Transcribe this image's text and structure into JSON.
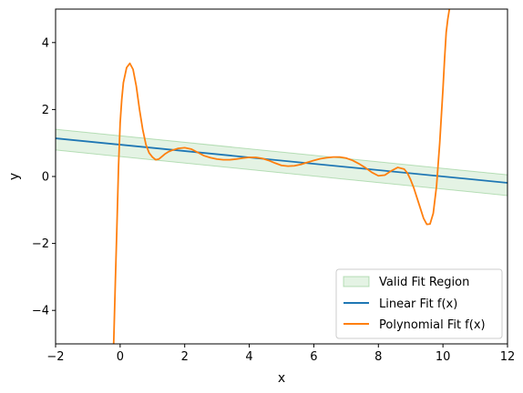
{
  "chart_data": {
    "type": "line",
    "title": "",
    "xlabel": "x",
    "ylabel": "y",
    "xlim": [
      -2,
      12
    ],
    "ylim": [
      -5,
      5
    ],
    "xticks": [
      -2,
      0,
      2,
      4,
      6,
      8,
      10,
      12
    ],
    "yticks": [
      -4,
      -2,
      0,
      2,
      4
    ],
    "xtick_labels": [
      "−2",
      "0",
      "2",
      "4",
      "6",
      "8",
      "10",
      "12"
    ],
    "ytick_labels": [
      "−4",
      "−2",
      "0",
      "2",
      "4"
    ],
    "grid": false,
    "legend_position": "lower right",
    "colors": {
      "band_fill": "#2ca02c",
      "band_edge": "#2ca02c",
      "linear": "#1f77b4",
      "polynomial": "#ff7f0e"
    },
    "band": {
      "name": "Valid Fit Region",
      "x": [
        -2,
        12
      ],
      "lower": [
        0.79,
        -0.57
      ],
      "upper": [
        1.41,
        0.05
      ]
    },
    "series": [
      {
        "name": "Linear Fit f(x)",
        "x": [
          -2,
          12
        ],
        "y": [
          1.14,
          -0.19
        ]
      },
      {
        "name": "Polynomial Fit f(x)",
        "x": [
          -0.2,
          -0.15,
          -0.1,
          -0.05,
          0.0,
          0.05,
          0.1,
          0.2,
          0.3,
          0.4,
          0.5,
          0.6,
          0.7,
          0.8,
          0.9,
          1.0,
          1.1,
          1.2,
          1.3,
          1.4,
          1.5,
          1.6,
          1.8,
          2.0,
          2.2,
          2.4,
          2.6,
          2.8,
          3.0,
          3.2,
          3.4,
          3.6,
          3.8,
          4.0,
          4.2,
          4.4,
          4.6,
          4.8,
          5.0,
          5.2,
          5.4,
          5.6,
          5.8,
          6.0,
          6.2,
          6.4,
          6.6,
          6.8,
          7.0,
          7.2,
          7.4,
          7.6,
          7.8,
          8.0,
          8.2,
          8.4,
          8.6,
          8.8,
          8.9,
          9.0,
          9.1,
          9.2,
          9.3,
          9.4,
          9.5,
          9.6,
          9.7,
          9.8,
          9.9,
          10.0,
          10.05,
          10.1,
          10.15,
          10.2,
          10.25
        ],
        "y": [
          -5.0,
          -3.2,
          -1.5,
          0.3,
          1.6,
          2.3,
          2.8,
          3.25,
          3.38,
          3.2,
          2.7,
          2.0,
          1.4,
          0.95,
          0.7,
          0.58,
          0.5,
          0.52,
          0.6,
          0.68,
          0.74,
          0.78,
          0.84,
          0.86,
          0.82,
          0.72,
          0.62,
          0.56,
          0.52,
          0.5,
          0.5,
          0.52,
          0.55,
          0.57,
          0.57,
          0.54,
          0.48,
          0.4,
          0.33,
          0.31,
          0.32,
          0.36,
          0.42,
          0.48,
          0.53,
          0.56,
          0.58,
          0.58,
          0.55,
          0.48,
          0.38,
          0.26,
          0.12,
          0.02,
          0.04,
          0.17,
          0.27,
          0.22,
          0.1,
          -0.1,
          -0.35,
          -0.65,
          -0.95,
          -1.25,
          -1.43,
          -1.42,
          -1.1,
          -0.3,
          1.0,
          2.6,
          3.5,
          4.3,
          4.7,
          5.0,
          5.3
        ]
      }
    ]
  }
}
